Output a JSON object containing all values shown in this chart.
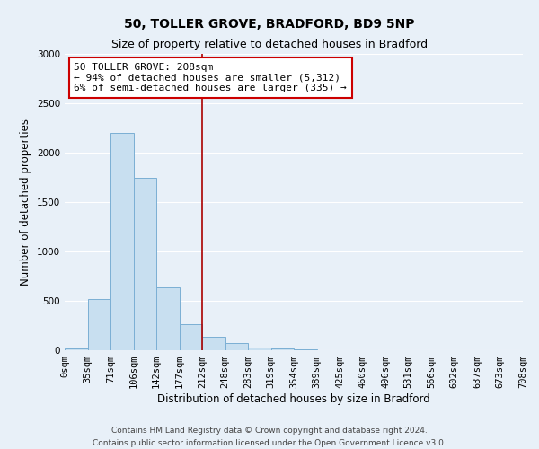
{
  "title": "50, TOLLER GROVE, BRADFORD, BD9 5NP",
  "subtitle": "Size of property relative to detached houses in Bradford",
  "xlabel": "Distribution of detached houses by size in Bradford",
  "ylabel": "Number of detached properties",
  "bar_color": "#c8dff0",
  "bar_edge_color": "#7bafd4",
  "background_color": "#e8f0f8",
  "plot_bg_color": "#e8f0f8",
  "grid_color": "#ffffff",
  "bins": [
    "0sqm",
    "35sqm",
    "71sqm",
    "106sqm",
    "142sqm",
    "177sqm",
    "212sqm",
    "248sqm",
    "283sqm",
    "319sqm",
    "354sqm",
    "389sqm",
    "425sqm",
    "460sqm",
    "496sqm",
    "531sqm",
    "566sqm",
    "602sqm",
    "637sqm",
    "673sqm",
    "708sqm"
  ],
  "values": [
    20,
    520,
    2200,
    1750,
    635,
    265,
    140,
    75,
    30,
    15,
    8,
    3,
    2,
    1,
    0,
    0,
    0,
    0,
    0,
    0
  ],
  "ylim": [
    0,
    3000
  ],
  "yticks": [
    0,
    500,
    1000,
    1500,
    2000,
    2500,
    3000
  ],
  "property_label": "50 TOLLER GROVE: 208sqm",
  "annotation_line1": "← 94% of detached houses are smaller (5,312)",
  "annotation_line2": "6% of semi-detached houses are larger (335) →",
  "vline_color": "#aa0000",
  "vline_x": 6,
  "annotation_box_color": "#ffffff",
  "annotation_box_edge": "#cc0000",
  "footer_line1": "Contains HM Land Registry data © Crown copyright and database right 2024.",
  "footer_line2": "Contains public sector information licensed under the Open Government Licence v3.0.",
  "title_fontsize": 10,
  "subtitle_fontsize": 9,
  "xlabel_fontsize": 8.5,
  "ylabel_fontsize": 8.5,
  "tick_fontsize": 7.5,
  "annotation_fontsize": 8,
  "footer_fontsize": 6.5
}
